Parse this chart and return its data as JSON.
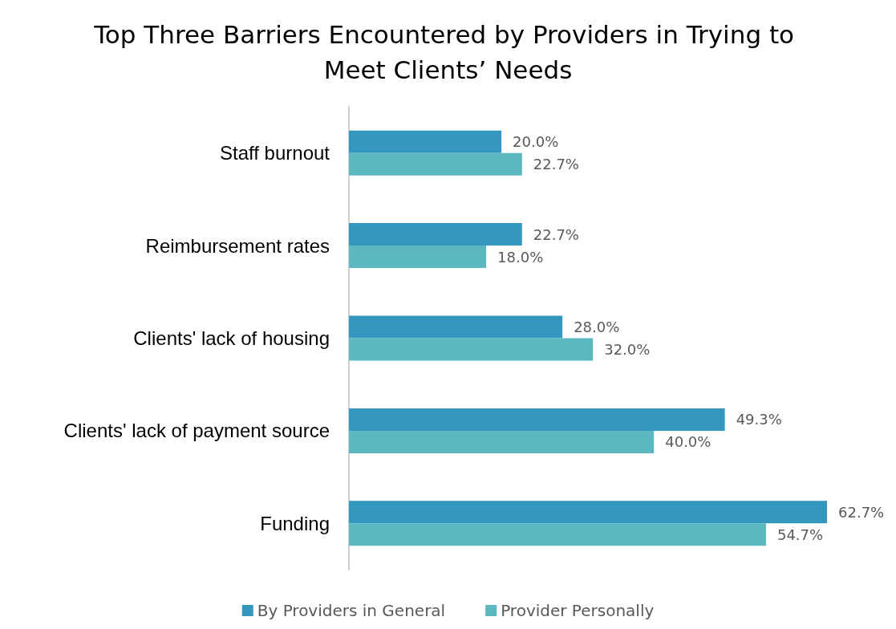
{
  "chart_data": {
    "type": "bar",
    "orientation": "horizontal",
    "title": "Top Three Barriers Encountered by Providers in Trying to Meet Clients’ Needs",
    "categories": [
      "Staff burnout",
      "Reimbursement rates",
      "Clients' lack of housing",
      "Clients' lack of payment source",
      "Funding"
    ],
    "series": [
      {
        "name": "By Providers in General",
        "color": "#3497bd",
        "values": [
          20.0,
          22.7,
          28.0,
          49.3,
          62.7
        ],
        "value_labels": [
          "20.0%",
          "22.7%",
          "28.0%",
          "49.3%",
          "62.7%"
        ]
      },
      {
        "name": "Provider Personally",
        "color": "#5bb8c1",
        "values": [
          22.7,
          18.0,
          32.0,
          40.0,
          54.7
        ],
        "value_labels": [
          "22.7%",
          "18.0%",
          "32.0%",
          "40.0%",
          "54.7%"
        ]
      }
    ],
    "legend": "bottom"
  }
}
